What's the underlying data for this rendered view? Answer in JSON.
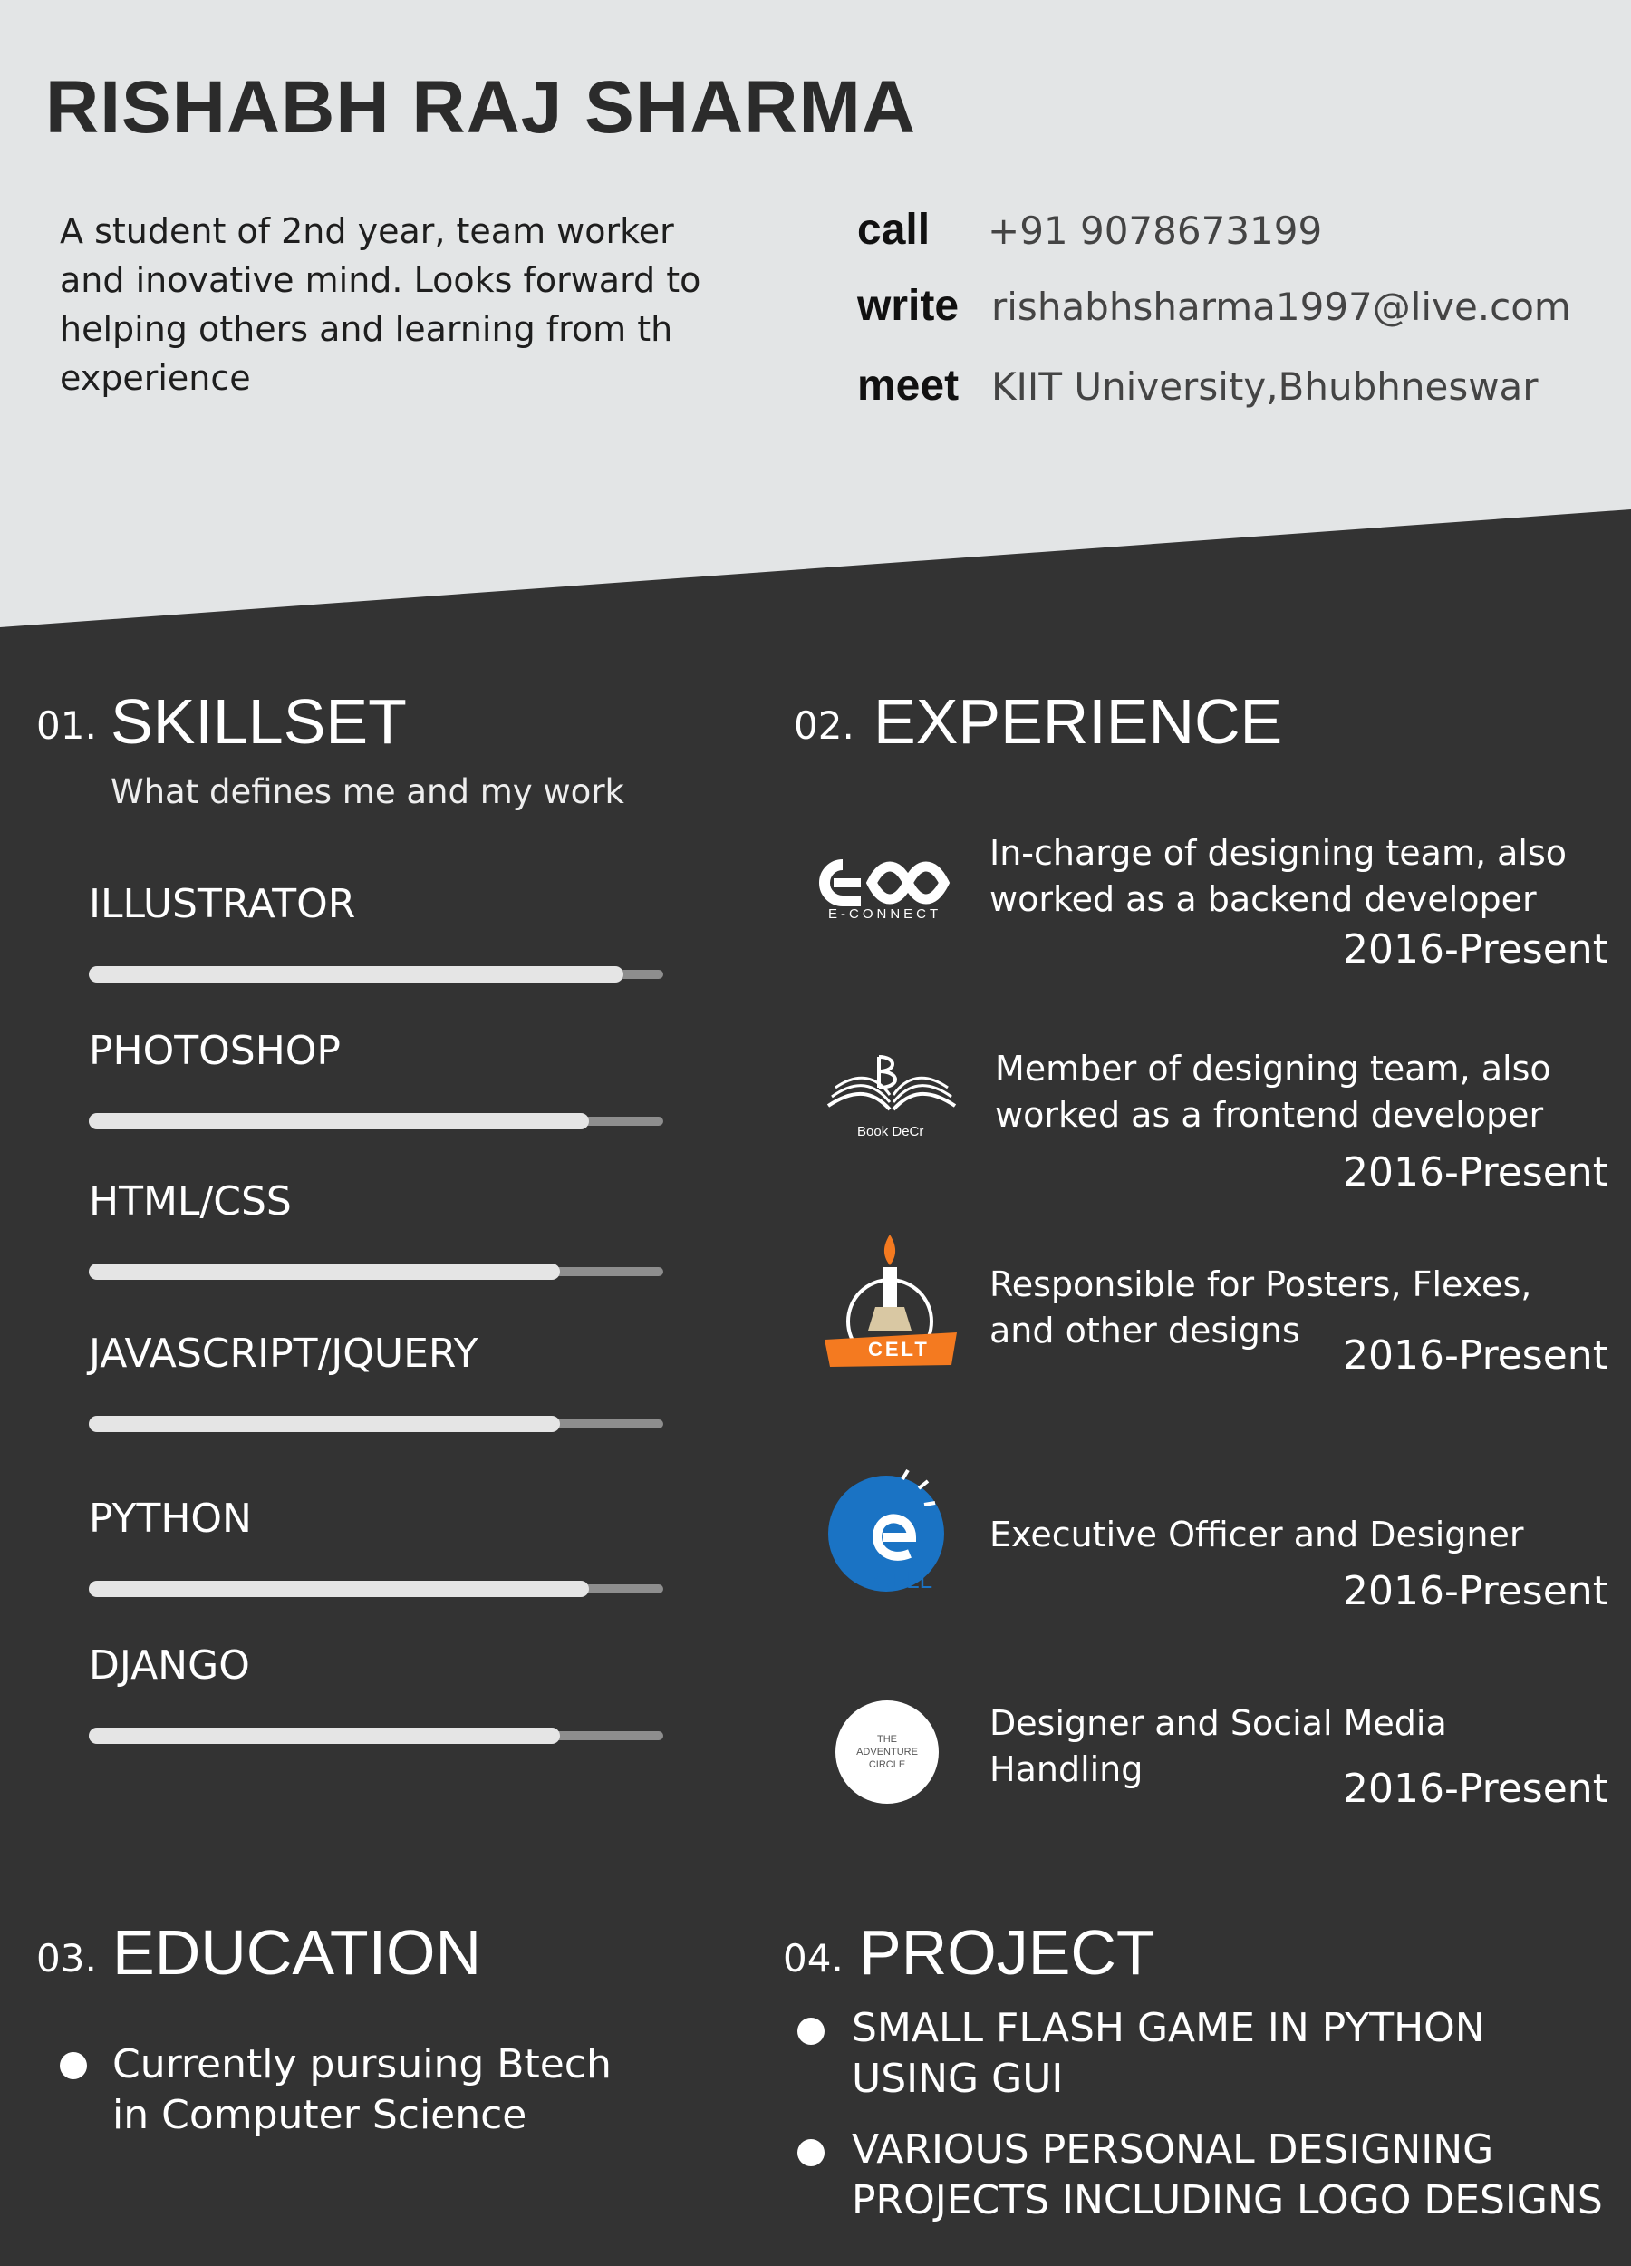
{
  "header": {
    "name": "RISHABH RAJ SHARMA",
    "summary": "A student of 2nd year, team worker and inovative mind. Looks forward to helping others and learning from th experience",
    "contacts": [
      {
        "label": "call",
        "value": "+91 9078673199",
        "icon": "phone"
      },
      {
        "label": "write",
        "value": "rishabhsharma1997@live.com",
        "icon": "email"
      },
      {
        "label": "meet",
        "value": "KIIT University,Bhubhneswar",
        "icon": "location"
      }
    ]
  },
  "colors": {
    "header_bg": "#e3e5e6",
    "body_bg": "#333333",
    "bar_fill": "#e5e5e5",
    "bar_track": "#8e8e8e",
    "celt_orange": "#f47a20",
    "ecell_blue": "#1a73c4"
  },
  "skillset": {
    "number": "01.",
    "title": "SKILLSET",
    "subtitle": "What defines me and my work",
    "skills": [
      {
        "name": "ILLUSTRATOR",
        "level": 0.93
      },
      {
        "name": "PHOTOSHOP",
        "level": 0.87
      },
      {
        "name": "HTML/CSS",
        "level": 0.82
      },
      {
        "name": "JAVASCRIPT/JQUERY",
        "level": 0.82
      },
      {
        "name": "PYTHON",
        "level": 0.87
      },
      {
        "name": "DJANGO",
        "level": 0.82
      }
    ]
  },
  "experience": {
    "number": "02.",
    "title": "EXPERIENCE",
    "items": [
      {
        "logo": "e-connect-logo",
        "logo_text": "E-CONNECT",
        "description": "In-charge of designing team, also worked as a backend developer",
        "date": "2016-Present"
      },
      {
        "logo": "book-decr-logo",
        "logo_text": "Book DeCr",
        "description": "Member of designing team, also worked as a frontend developer",
        "date": "2016-Present"
      },
      {
        "logo": "celt-logo",
        "logo_text": "CELT",
        "description": "Responsible for Posters, Flexes, and other designs",
        "date": "2016-Present"
      },
      {
        "logo": "ecell-logo",
        "logo_text": "CELL",
        "description": "Executive Officer and Designer",
        "date": "2016-Present"
      },
      {
        "logo": "adventure-circle-logo",
        "logo_text": "THE ADVENTURE CIRCLE",
        "description": "Designer and Social Media Handling",
        "date": "2016-Present"
      }
    ]
  },
  "education": {
    "number": "03.",
    "title": "EDUCATION",
    "items": [
      "Currently pursuing Btech in Computer Science"
    ]
  },
  "project": {
    "number": "04.",
    "title": "PROJECT",
    "items": [
      "SMALL FLASH GAME IN PYTHON USING GUI",
      "VARIOUS PERSONAL DESIGNING PROJECTS INCLUDING LOGO DESIGNS"
    ]
  }
}
